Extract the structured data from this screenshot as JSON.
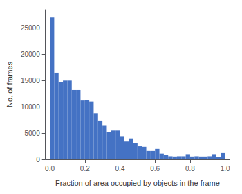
{
  "chart_data": {
    "type": "histogram",
    "xlabel": "Fraction of area occupied by objects in the frame",
    "ylabel": "No. of frames",
    "bins": [
      0,
      0.025,
      0.05,
      0.075,
      0.1,
      0.125,
      0.15,
      0.175,
      0.2,
      0.225,
      0.25,
      0.275,
      0.3,
      0.325,
      0.35,
      0.375,
      0.4,
      0.425,
      0.45,
      0.475,
      0.5,
      0.525,
      0.55,
      0.575,
      0.6,
      0.625,
      0.65,
      0.675,
      0.7,
      0.725,
      0.75,
      0.775,
      0.8,
      0.825,
      0.85,
      0.875,
      0.9,
      0.925,
      0.95,
      0.975,
      1
    ],
    "values": [
      27000,
      16500,
      14700,
      15000,
      15000,
      13200,
      13200,
      11200,
      11200,
      11000,
      8800,
      7400,
      6400,
      5200,
      5500,
      5500,
      4300,
      3400,
      4000,
      3100,
      2500,
      2400,
      1600,
      1600,
      2000,
      1100,
      800,
      600,
      550,
      600,
      600,
      1000,
      550,
      600,
      550,
      550,
      600,
      1000,
      500,
      1200
    ],
    "color": "#4472c4",
    "xlim": [
      -0.025,
      1.025
    ],
    "ylim": [
      0,
      28500
    ],
    "xticks": [
      {
        "value": 0,
        "label": "0.0"
      },
      0.2,
      0.4,
      0.6,
      0.8,
      {
        "value": 1,
        "label": "1.0"
      }
    ],
    "yticks": [
      0,
      5000,
      10000,
      15000,
      20000,
      25000
    ],
    "grid": false
  }
}
